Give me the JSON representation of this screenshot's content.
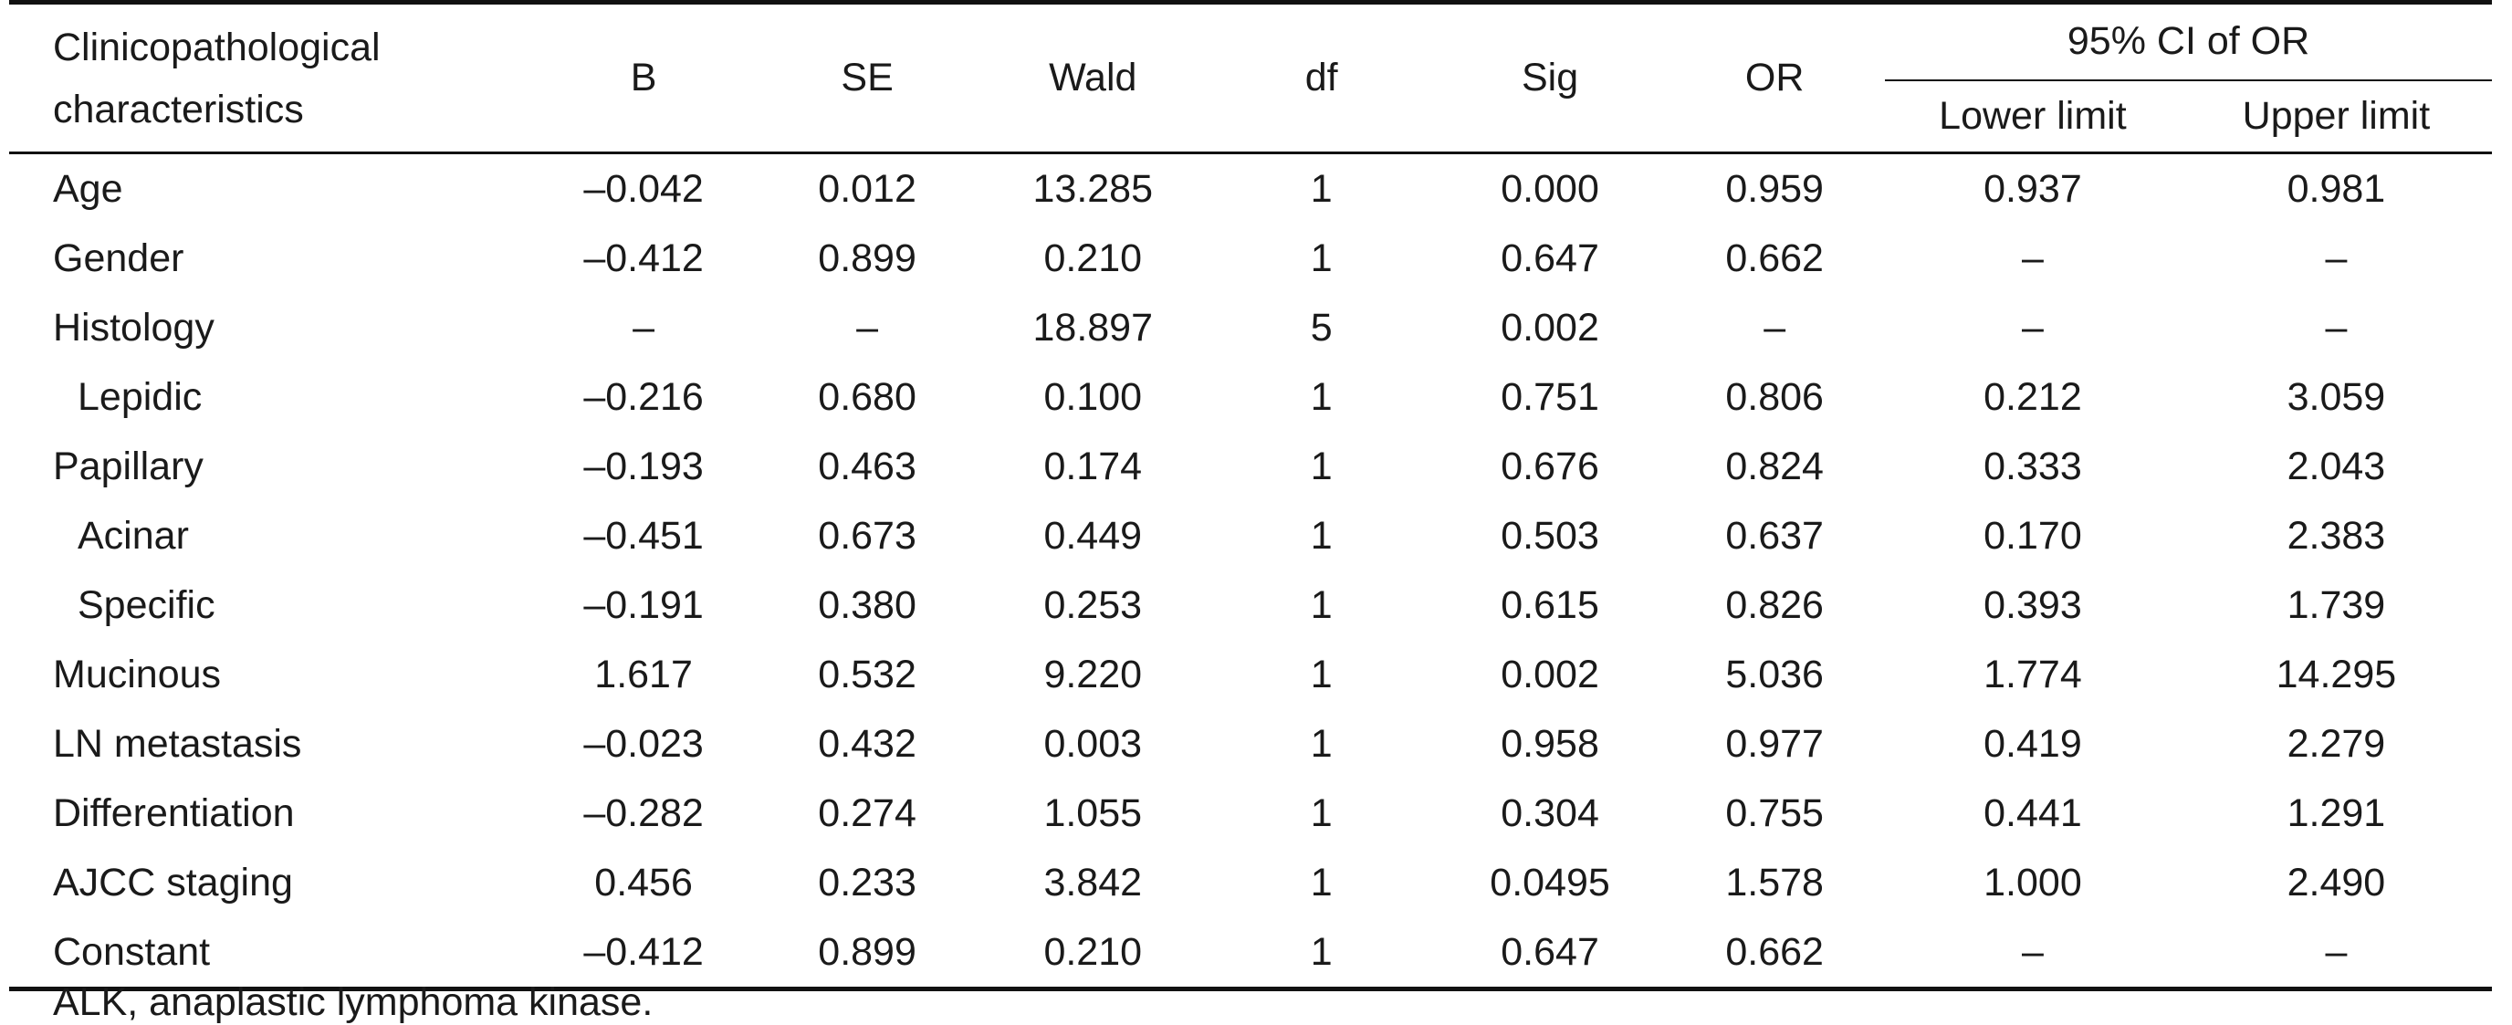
{
  "headers": {
    "label_line1": "Clinicopathological",
    "label_line2": "characteristics",
    "b": "B",
    "se": "SE",
    "wald": "Wald",
    "df": "df",
    "sig": "Sig",
    "or": "OR",
    "ci": "95% CI of OR",
    "lower": "Lower limit",
    "upper": "Upper limit"
  },
  "rows": [
    {
      "label": "Age",
      "indent": false,
      "b": "–0.042",
      "se": "0.012",
      "wald": "13.285",
      "df": "1",
      "sig": "0.000",
      "or": "0.959",
      "lower": "0.937",
      "upper": "0.981"
    },
    {
      "label": "Gender",
      "indent": false,
      "b": "–0.412",
      "se": "0.899",
      "wald": "0.210",
      "df": "1",
      "sig": "0.647",
      "or": "0.662",
      "lower": "–",
      "upper": "–"
    },
    {
      "label": "Histology",
      "indent": false,
      "b": "–",
      "se": "–",
      "wald": "18.897",
      "df": "5",
      "sig": "0.002",
      "or": "–",
      "lower": "–",
      "upper": "–"
    },
    {
      "label": "Lepidic",
      "indent": true,
      "b": "–0.216",
      "se": "0.680",
      "wald": "0.100",
      "df": "1",
      "sig": "0.751",
      "or": "0.806",
      "lower": "0.212",
      "upper": "3.059"
    },
    {
      "label": "Papillary",
      "indent": false,
      "b": "–0.193",
      "se": "0.463",
      "wald": "0.174",
      "df": "1",
      "sig": "0.676",
      "or": "0.824",
      "lower": "0.333",
      "upper": "2.043"
    },
    {
      "label": "Acinar",
      "indent": true,
      "b": "–0.451",
      "se": "0.673",
      "wald": "0.449",
      "df": "1",
      "sig": "0.503",
      "or": "0.637",
      "lower": "0.170",
      "upper": "2.383"
    },
    {
      "label": "Specific",
      "indent": true,
      "b": "–0.191",
      "se": "0.380",
      "wald": "0.253",
      "df": "1",
      "sig": "0.615",
      "or": "0.826",
      "lower": "0.393",
      "upper": "1.739"
    },
    {
      "label": "Mucinous",
      "indent": false,
      "b": "1.617",
      "se": "0.532",
      "wald": "9.220",
      "df": "1",
      "sig": "0.002",
      "or": "5.036",
      "lower": "1.774",
      "upper": "14.295"
    },
    {
      "label": "LN metastasis",
      "indent": false,
      "b": "–0.023",
      "se": "0.432",
      "wald": "0.003",
      "df": "1",
      "sig": "0.958",
      "or": "0.977",
      "lower": "0.419",
      "upper": "2.279"
    },
    {
      "label": "Differentiation",
      "indent": false,
      "b": "–0.282",
      "se": "0.274",
      "wald": "1.055",
      "df": "1",
      "sig": "0.304",
      "or": "0.755",
      "lower": "0.441",
      "upper": "1.291"
    },
    {
      "label": "AJCC staging",
      "indent": false,
      "b": "0.456",
      "se": "0.233",
      "wald": "3.842",
      "df": "1",
      "sig": "0.0495",
      "or": "1.578",
      "lower": "1.000",
      "upper": "2.490"
    },
    {
      "label": "Constant",
      "indent": false,
      "b": "–0.412",
      "se": "0.899",
      "wald": "0.210",
      "df": "1",
      "sig": "0.647",
      "or": "0.662",
      "lower": "–",
      "upper": "–"
    }
  ],
  "footnote": "ALK, anaplastic lymphoma kinase."
}
